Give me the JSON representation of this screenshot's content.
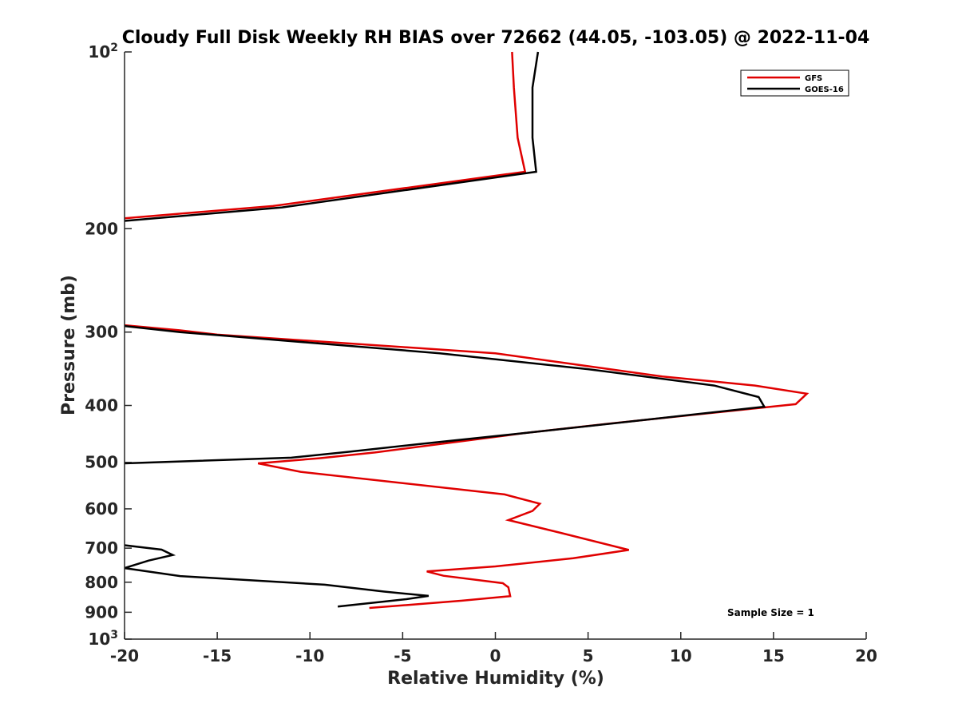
{
  "chart_data": {
    "type": "line",
    "title": "Cloudy Full Disk Weekly RH BIAS over 72662 (44.05, -103.05) @ 2022-11-04",
    "xlabel": "Relative Humidity (%)",
    "ylabel": "Pressure (mb)",
    "xlim": [
      -20,
      20
    ],
    "ylim": [
      100,
      1000
    ],
    "y_scale": "log",
    "y_reversed": true,
    "grid": false,
    "legend_position": "top-right",
    "annotation": "Sample Size = 1",
    "x_ticks": [
      "-20",
      "-15",
      "-10",
      "-5",
      "0",
      "5",
      "10",
      "15",
      "20"
    ],
    "y_ticks": [
      {
        "value": 100,
        "label": "10",
        "sup": "2"
      },
      {
        "value": 200,
        "label": "200",
        "sup": ""
      },
      {
        "value": 300,
        "label": "300",
        "sup": ""
      },
      {
        "value": 400,
        "label": "400",
        "sup": ""
      },
      {
        "value": 500,
        "label": "500",
        "sup": ""
      },
      {
        "value": 600,
        "label": "600",
        "sup": ""
      },
      {
        "value": 700,
        "label": "700",
        "sup": ""
      },
      {
        "value": 800,
        "label": "800",
        "sup": ""
      },
      {
        "value": 900,
        "label": "900",
        "sup": ""
      },
      {
        "value": 1000,
        "label": "10",
        "sup": "3"
      }
    ],
    "series": [
      {
        "name": "GFS",
        "color": "#e00000",
        "segments": [
          [
            [
              0.9,
              100
            ],
            [
              1.0,
              115
            ],
            [
              1.2,
              140
            ],
            [
              1.6,
              160
            ],
            [
              -12,
              183
            ],
            [
              -20,
              192
            ]
          ],
          [
            [
              -20,
              292
            ],
            [
              -17,
              298
            ],
            [
              -15,
              303
            ],
            [
              0,
              326
            ],
            [
              5,
              343
            ],
            [
              9,
              357
            ],
            [
              14,
              370
            ],
            [
              16.8,
              382
            ],
            [
              16.2,
              398
            ],
            [
              6,
              430
            ],
            [
              1.5,
              446
            ],
            [
              -6.5,
              481
            ],
            [
              -9.5,
              492
            ],
            [
              -12.8,
              502
            ],
            [
              -10.5,
              519
            ],
            [
              0.5,
              567
            ],
            [
              2.4,
              588
            ],
            [
              2,
              605
            ],
            [
              0.7,
              627
            ],
            [
              3.5,
              659
            ],
            [
              7.2,
              705
            ],
            [
              4.2,
              728
            ],
            [
              0,
              752
            ],
            [
              -3.7,
              767
            ],
            [
              -2.8,
              780
            ],
            [
              0.4,
              803
            ],
            [
              0.7,
              816
            ],
            [
              0.8,
              845
            ],
            [
              -1.8,
              860
            ],
            [
              -6.8,
              885
            ]
          ]
        ]
      },
      {
        "name": "GOES-16",
        "color": "#000000",
        "segments": [
          [
            [
              2.3,
              100
            ],
            [
              2.0,
              115
            ],
            [
              2.0,
              140
            ],
            [
              2.2,
              160
            ],
            [
              -11.5,
              184
            ],
            [
              -20,
              194
            ]
          ],
          [
            [
              -20,
              293
            ],
            [
              -17,
              300
            ],
            [
              -3,
              326
            ],
            [
              5,
              347
            ],
            [
              11.8,
              370
            ],
            [
              14.2,
              387
            ],
            [
              14.5,
              402
            ],
            [
              1.5,
              446
            ],
            [
              -4,
              465
            ],
            [
              -8,
              480
            ],
            [
              -11,
              491
            ],
            [
              -20,
              502
            ]
          ],
          [
            [
              -20,
              692
            ],
            [
              -18,
              704
            ],
            [
              -17.4,
              719
            ],
            [
              -18.7,
              735
            ],
            [
              -20,
              757
            ],
            [
              -17,
              781
            ],
            [
              -9.2,
              808
            ],
            [
              -6,
              830
            ],
            [
              -3.6,
              844
            ],
            [
              -4.8,
              855
            ],
            [
              -8.5,
              880
            ]
          ]
        ]
      }
    ]
  }
}
